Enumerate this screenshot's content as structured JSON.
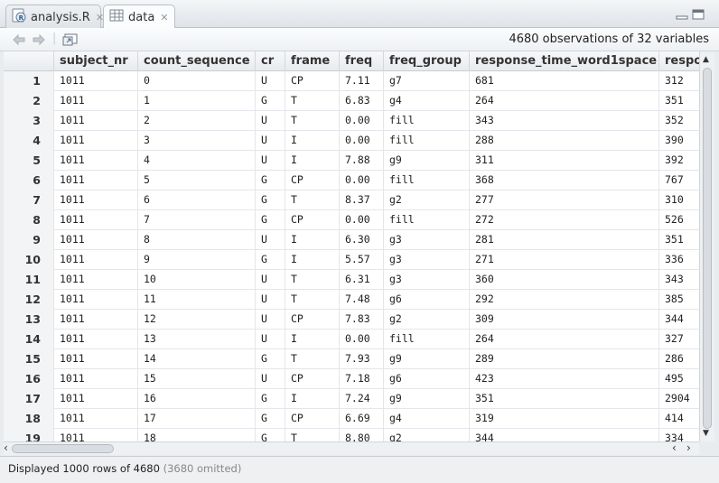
{
  "tabs": [
    {
      "label": "analysis.R",
      "icon": "r-script-icon",
      "active": false
    },
    {
      "label": "data",
      "icon": "table-icon",
      "active": true
    }
  ],
  "toolbar": {
    "observations": "4680 observations of 32 variables"
  },
  "table": {
    "columns": [
      "subject_nr",
      "count_sequence",
      "cr",
      "frame",
      "freq",
      "freq_group",
      "response_time_word1space",
      "respo"
    ],
    "rows": [
      {
        "n": "1",
        "cells": [
          "1011",
          "0",
          "U",
          "CP",
          "7.11",
          "g7",
          "681",
          "312"
        ]
      },
      {
        "n": "2",
        "cells": [
          "1011",
          "1",
          "G",
          "T",
          "6.83",
          "g4",
          "264",
          "351"
        ]
      },
      {
        "n": "3",
        "cells": [
          "1011",
          "2",
          "U",
          "T",
          "0.00",
          "fill",
          "343",
          "352"
        ]
      },
      {
        "n": "4",
        "cells": [
          "1011",
          "3",
          "U",
          "I",
          "0.00",
          "fill",
          "288",
          "390"
        ]
      },
      {
        "n": "5",
        "cells": [
          "1011",
          "4",
          "U",
          "I",
          "7.88",
          "g9",
          "311",
          "392"
        ]
      },
      {
        "n": "6",
        "cells": [
          "1011",
          "5",
          "G",
          "CP",
          "0.00",
          "fill",
          "368",
          "767"
        ]
      },
      {
        "n": "7",
        "cells": [
          "1011",
          "6",
          "G",
          "T",
          "8.37",
          "g2",
          "277",
          "310"
        ]
      },
      {
        "n": "8",
        "cells": [
          "1011",
          "7",
          "G",
          "CP",
          "0.00",
          "fill",
          "272",
          "526"
        ]
      },
      {
        "n": "9",
        "cells": [
          "1011",
          "8",
          "U",
          "I",
          "6.30",
          "g3",
          "281",
          "351"
        ]
      },
      {
        "n": "10",
        "cells": [
          "1011",
          "9",
          "G",
          "I",
          "5.57",
          "g3",
          "271",
          "336"
        ]
      },
      {
        "n": "11",
        "cells": [
          "1011",
          "10",
          "U",
          "T",
          "6.31",
          "g3",
          "360",
          "343"
        ]
      },
      {
        "n": "12",
        "cells": [
          "1011",
          "11",
          "U",
          "T",
          "7.48",
          "g6",
          "292",
          "385"
        ]
      },
      {
        "n": "13",
        "cells": [
          "1011",
          "12",
          "U",
          "CP",
          "7.83",
          "g2",
          "309",
          "344"
        ]
      },
      {
        "n": "14",
        "cells": [
          "1011",
          "13",
          "U",
          "I",
          "0.00",
          "fill",
          "264",
          "327"
        ]
      },
      {
        "n": "15",
        "cells": [
          "1011",
          "14",
          "G",
          "T",
          "7.93",
          "g9",
          "289",
          "286"
        ]
      },
      {
        "n": "16",
        "cells": [
          "1011",
          "15",
          "U",
          "CP",
          "7.18",
          "g6",
          "423",
          "495"
        ]
      },
      {
        "n": "17",
        "cells": [
          "1011",
          "16",
          "G",
          "I",
          "7.24",
          "g9",
          "351",
          "2904"
        ]
      },
      {
        "n": "18",
        "cells": [
          "1011",
          "17",
          "G",
          "CP",
          "6.69",
          "g4",
          "319",
          "414"
        ]
      },
      {
        "n": "19",
        "cells": [
          "1011",
          "18",
          "G",
          "T",
          "8.80",
          "g2",
          "344",
          "334"
        ]
      }
    ]
  },
  "status": {
    "displayed": "Displayed 1000 rows of 4680",
    "omitted": "(3680 omitted)"
  }
}
